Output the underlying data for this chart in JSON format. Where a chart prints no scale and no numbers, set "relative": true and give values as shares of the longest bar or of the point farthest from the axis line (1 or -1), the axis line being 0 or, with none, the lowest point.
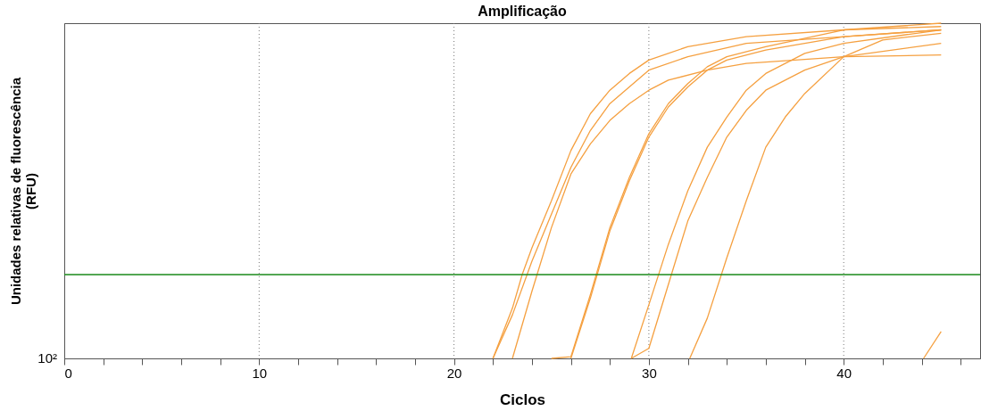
{
  "chart_data": {
    "type": "line",
    "title": "Amplificação",
    "xlabel": "Ciclos",
    "ylabel": "Unidades relativas de fluorescência (RFU)",
    "relative": true,
    "xlim": [
      0,
      47
    ],
    "xticks": [
      0,
      {
        "value": 2,
        "label": null
      },
      {
        "value": 4,
        "label": null
      },
      {
        "value": 6,
        "label": null
      },
      {
        "value": 8,
        "label": null
      },
      10,
      {
        "value": 12,
        "label": null
      },
      {
        "value": 14,
        "label": null
      },
      {
        "value": 16,
        "label": null
      },
      {
        "value": 18,
        "label": null
      },
      20,
      {
        "value": 22,
        "label": null
      },
      {
        "value": 24,
        "label": null
      },
      {
        "value": 26,
        "label": null
      },
      {
        "value": 28,
        "label": null
      },
      30,
      {
        "value": 32,
        "label": null
      },
      {
        "value": 34,
        "label": null
      },
      {
        "value": 36,
        "label": null
      },
      {
        "value": 38,
        "label": null
      },
      40,
      {
        "value": 42,
        "label": null
      },
      {
        "value": 44,
        "label": null
      },
      {
        "value": 46,
        "label": null
      }
    ],
    "grid": "x",
    "series": [
      {
        "color": "#f5a040",
        "x": [
          22,
          23,
          23.5,
          24,
          25,
          26,
          27,
          28,
          29,
          30,
          32,
          35,
          40,
          45
        ],
        "values": [
          0,
          0.15,
          0.25,
          0.33,
          0.47,
          0.62,
          0.73,
          0.8,
          0.85,
          0.89,
          0.93,
          0.96,
          0.98,
          1.0
        ]
      },
      {
        "color": "#f5a040",
        "x": [
          22,
          23,
          24,
          25,
          26,
          27,
          28,
          29,
          30,
          32,
          35,
          40,
          45
        ],
        "values": [
          0,
          0.13,
          0.29,
          0.43,
          0.57,
          0.68,
          0.76,
          0.81,
          0.86,
          0.9,
          0.94,
          0.96,
          0.98
        ]
      },
      {
        "color": "#f5a040",
        "x": [
          23,
          24,
          25,
          26,
          27,
          28,
          29,
          30,
          31,
          33,
          35,
          40,
          45
        ],
        "values": [
          0,
          0.2,
          0.39,
          0.55,
          0.64,
          0.71,
          0.76,
          0.8,
          0.83,
          0.86,
          0.88,
          0.9,
          0.905
        ]
      },
      {
        "color": "#f5a040",
        "x": [
          25,
          26,
          27,
          28,
          29,
          30,
          31,
          32,
          33,
          34,
          36,
          40,
          45
        ],
        "values": [
          0,
          0.005,
          0.19,
          0.39,
          0.54,
          0.67,
          0.76,
          0.82,
          0.87,
          0.9,
          0.93,
          0.98,
          0.99
        ]
      },
      {
        "color": "#f5a040",
        "x": [
          26,
          27,
          28,
          29,
          30,
          31,
          32,
          33,
          34,
          36,
          40,
          45
        ],
        "values": [
          0,
          0.18,
          0.38,
          0.53,
          0.66,
          0.75,
          0.81,
          0.86,
          0.89,
          0.92,
          0.96,
          0.98
        ]
      },
      {
        "color": "#f5a040",
        "x": [
          29.1,
          30,
          31,
          32,
          33,
          34,
          35,
          36,
          38,
          40,
          45
        ],
        "values": [
          0,
          0.16,
          0.34,
          0.5,
          0.63,
          0.72,
          0.8,
          0.85,
          0.91,
          0.94,
          0.98
        ]
      },
      {
        "color": "#f5a040",
        "x": [
          29.1,
          30,
          31,
          32,
          33,
          34,
          35,
          36,
          38,
          40,
          45
        ],
        "values": [
          0,
          0.03,
          0.22,
          0.41,
          0.54,
          0.66,
          0.74,
          0.8,
          0.86,
          0.9,
          0.94
        ]
      },
      {
        "color": "#f5a040",
        "x": [
          32.1,
          33,
          34,
          35,
          36,
          37,
          38,
          40,
          42,
          45
        ],
        "values": [
          0,
          0.12,
          0.3,
          0.47,
          0.63,
          0.72,
          0.79,
          0.9,
          0.95,
          0.97
        ]
      },
      {
        "color": "#f5a040",
        "x": [
          44.1,
          45
        ],
        "values": [
          0,
          0.08
        ]
      }
    ],
    "ref_lines": [
      {
        "axis": "y",
        "value": 0.25,
        "color": "#1a8a1a",
        "line_style": "solid"
      }
    ],
    "annotations": [
      "10²"
    ]
  }
}
